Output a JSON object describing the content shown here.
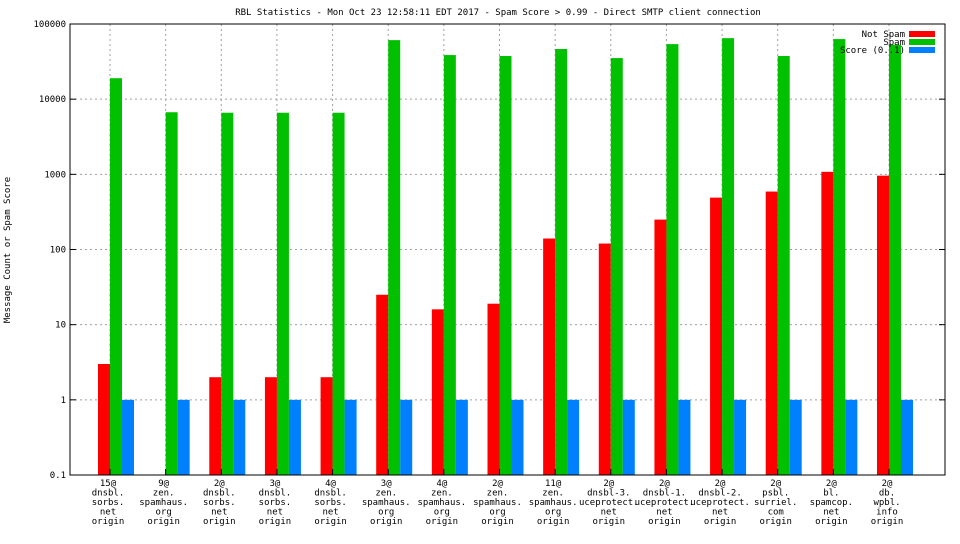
{
  "chart_data": {
    "type": "bar",
    "title": "RBL Statistics - Mon Oct 23 12:58:11 EDT 2017 - Spam Score > 0.99 - Direct SMTP client connection",
    "xlabel": "",
    "ylabel": "Message Count or Spam Score",
    "yscale": "log",
    "ylim": [
      0.1,
      100000
    ],
    "yticks": [
      "100000",
      "10000",
      "1000",
      "100",
      "10",
      "1",
      "0.1"
    ],
    "grid": true,
    "legend_position": "top-right",
    "categories": [
      [
        "15@",
        "dnsbl.",
        "sorbs.",
        "net",
        "origin"
      ],
      [
        "9@",
        "zen.",
        "spamhaus.",
        "org",
        "origin"
      ],
      [
        "2@",
        "dnsbl.",
        "sorbs.",
        "net",
        "origin"
      ],
      [
        "3@",
        "dnsbl.",
        "sorbs.",
        "net",
        "origin"
      ],
      [
        "4@",
        "dnsbl.",
        "sorbs.",
        "net",
        "origin"
      ],
      [
        "3@",
        "zen.",
        "spamhaus.",
        "org",
        "origin"
      ],
      [
        "4@",
        "zen.",
        "spamhaus.",
        "org",
        "origin"
      ],
      [
        "2@",
        "zen.",
        "spamhaus.",
        "org",
        "origin"
      ],
      [
        "11@",
        "zen.",
        "spamhaus.",
        "org",
        "origin"
      ],
      [
        "2@",
        "dnsbl-3.",
        "uceprotect.",
        "net",
        "origin"
      ],
      [
        "2@",
        "dnsbl-1.",
        "uceprotect.",
        "net",
        "origin"
      ],
      [
        "2@",
        "dnsbl-2.",
        "uceprotect.",
        "net",
        "origin"
      ],
      [
        "2@",
        "psbl.",
        "surriel.",
        "com",
        "origin"
      ],
      [
        "2@",
        "bl.",
        "spamcop.",
        "net",
        "origin"
      ],
      [
        "2@",
        "db.",
        "wpbl.",
        "info",
        "origin"
      ]
    ],
    "series": [
      {
        "name": "Not Spam",
        "color": "#ff0000",
        "values": [
          3,
          0,
          2,
          2,
          2,
          25,
          16,
          19,
          140,
          120,
          250,
          490,
          590,
          1080,
          960
        ]
      },
      {
        "name": "Spam",
        "color": "#00c000",
        "values": [
          19000,
          6700,
          6600,
          6600,
          6600,
          61000,
          38600,
          37500,
          46500,
          35200,
          54000,
          64800,
          37500,
          63000,
          53000
        ]
      },
      {
        "name": "Score (0..1)",
        "color": "#0080ff",
        "values": [
          1,
          1,
          1,
          1,
          1,
          1,
          1,
          1,
          1,
          1,
          1,
          1,
          1,
          1,
          1
        ]
      }
    ]
  }
}
